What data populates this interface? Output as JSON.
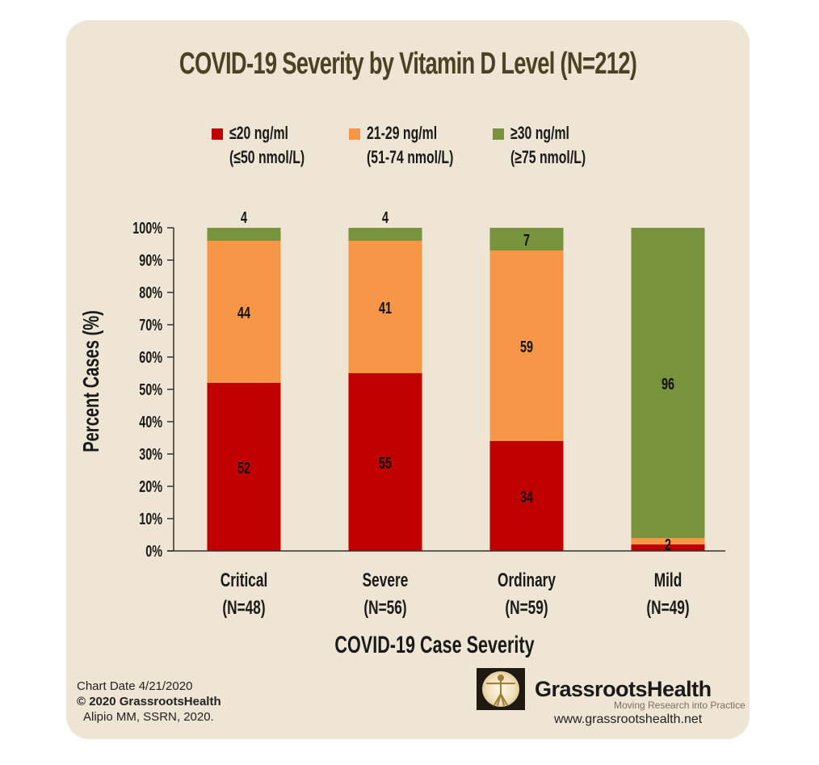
{
  "chart_data": {
    "type": "bar",
    "stacked": true,
    "title": "COVID-19 Severity by Vitamin D Level (N=212)",
    "xlabel": "COVID-19 Case Severity",
    "ylabel": "Percent Cases (%)",
    "ylim": [
      0,
      100
    ],
    "yticks": [
      "0%",
      "10%",
      "20%",
      "30%",
      "40%",
      "50%",
      "60%",
      "70%",
      "80%",
      "90%",
      "100%"
    ],
    "categories": [
      "Critical",
      "Severe",
      "Ordinary",
      "Mild"
    ],
    "category_n": [
      "(N=48)",
      "(N=56)",
      "(N=59)",
      "(N=49)"
    ],
    "series": [
      {
        "name": "≤20 ng/ml (≤50 nmol/L)",
        "line1": "≤20 ng/ml",
        "line2": "(≤50 nmol/L)",
        "color": "#c00000",
        "values": [
          52,
          55,
          34,
          2
        ],
        "labels": [
          "52",
          "55",
          "34",
          ""
        ]
      },
      {
        "name": "21-29 ng/ml (51-74 nmol/L)",
        "line1": "21-29 ng/ml",
        "line2": "(51-74 nmol/L)",
        "color": "#f79646",
        "values": [
          44,
          41,
          59,
          2
        ],
        "labels": [
          "44",
          "41",
          "59",
          "2"
        ]
      },
      {
        "name": "≥30 ng/ml (≥75 nmol/L)",
        "line1": "≥30 ng/ml",
        "line2": "(≥75 nmol/L)",
        "color": "#77933c",
        "values": [
          4,
          4,
          7,
          96
        ],
        "labels": [
          "4",
          "4",
          "7",
          "96"
        ]
      }
    ],
    "legend_position": "top",
    "grid": false
  },
  "footer": {
    "chart_date": "Chart Date 4/21/2020",
    "copyright": "© 2020 GrassrootsHealth",
    "citation": "Alipio MM, SSRN, 2020.",
    "brand": "GrassrootsHealth",
    "tagline": "Moving Research into Practice",
    "url": "www.grassrootshealth.net",
    "logo_icon": "vitruvian-man-icon"
  },
  "colors": {
    "background": "#efe5d4",
    "title": "#4a4225"
  }
}
